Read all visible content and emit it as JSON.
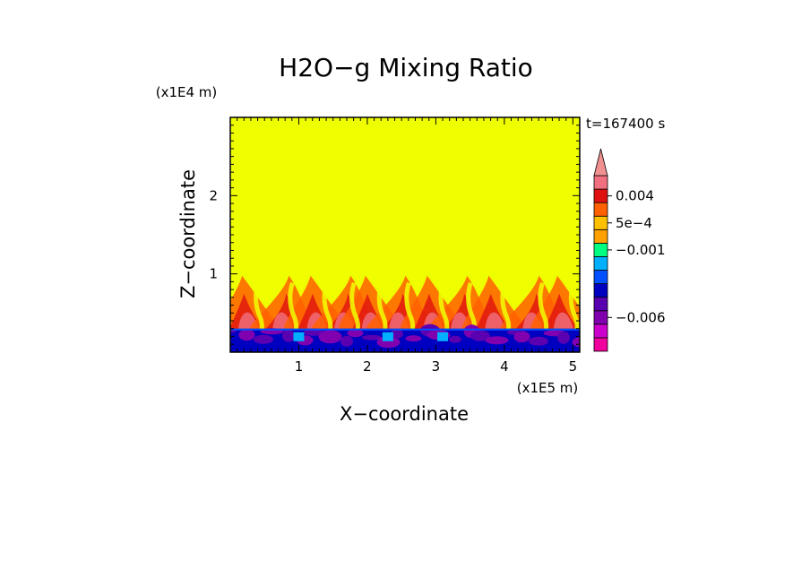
{
  "chart_data": {
    "type": "heatmap",
    "title": "H2O−g Mixing Ratio",
    "xlabel": "X−coordinate",
    "ylabel": "Z−coordinate",
    "x_unit": "(x1E5 m)",
    "y_unit": "(x1E4 m)",
    "time_label": "t=167400 s",
    "xlim": [
      0,
      5.1
    ],
    "ylim": [
      0,
      3.0
    ],
    "x_ticks": [
      1,
      2,
      3,
      4,
      5
    ],
    "x_tick_labels": [
      "1",
      "2",
      "3",
      "4",
      "5"
    ],
    "y_ticks": [
      1,
      2
    ],
    "y_tick_labels": [
      "1",
      "2"
    ],
    "grid": false,
    "colorbar": {
      "bins": [
        {
          "color": "#f0009c"
        },
        {
          "color": "#cc00cc"
        },
        {
          "color": "#8000b0"
        },
        {
          "color": "#5a00b0"
        },
        {
          "color": "#0000c0"
        },
        {
          "color": "#0050ff"
        },
        {
          "color": "#00b0ff"
        },
        {
          "color": "#00ff80"
        },
        {
          "color": "#ffa000"
        },
        {
          "color": "#ffc000"
        },
        {
          "color": "#ff6000"
        },
        {
          "color": "#e01010"
        },
        {
          "color": "#f07080"
        }
      ],
      "overflow_color": "#f09090",
      "labels": [
        {
          "text": "0.004",
          "bin": 11
        },
        {
          "text": "5e−4",
          "bin": 9
        },
        {
          "text": "−0.001",
          "bin": 7
        },
        {
          "text": "−0.006",
          "bin": 2
        }
      ]
    },
    "regions": {
      "background_color": "#f0ff00",
      "plume_top_z": 1.0,
      "near_surface_band_z": [
        0.0,
        0.3
      ],
      "plume_centers_x": [
        0.25,
        0.75,
        1.25,
        1.65,
        2.05,
        2.45,
        2.95,
        3.35,
        3.85,
        4.4,
        4.85
      ]
    }
  }
}
